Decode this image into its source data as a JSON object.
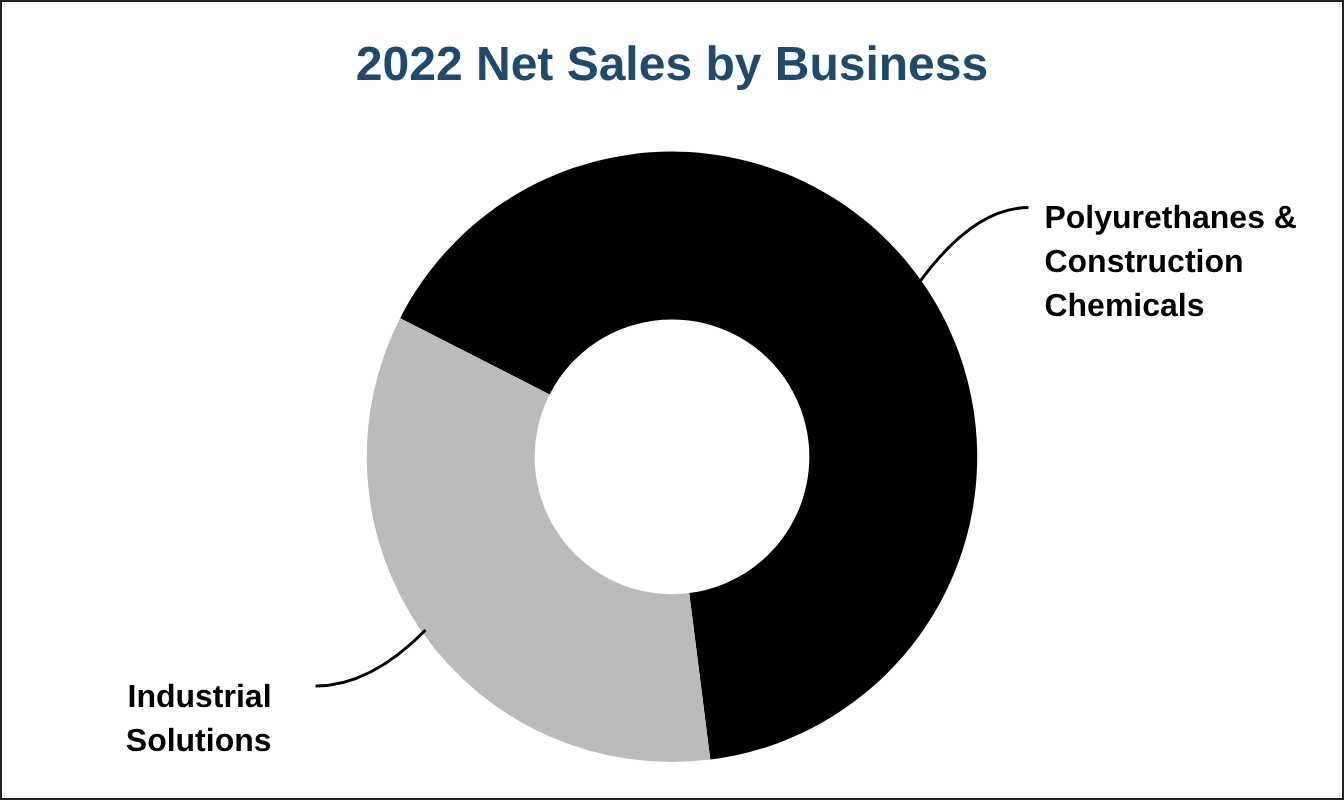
{
  "chart_data": {
    "type": "donut",
    "title": "2022 Net Sales by Business",
    "categories": [
      "Polyurethanes & Construction Chemicals",
      "Industrial Solutions"
    ],
    "values": [
      65.5,
      34.5
    ],
    "colors": [
      "#000000",
      "#bbbbbb"
    ],
    "legend": false
  }
}
